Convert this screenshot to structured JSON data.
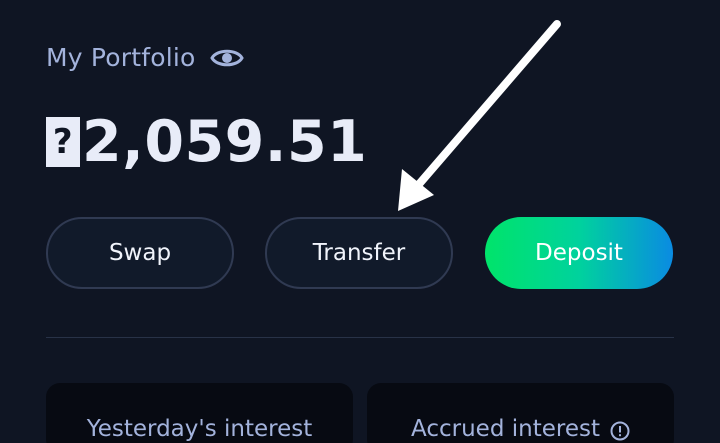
{
  "portfolio": {
    "title": "My Portfolio",
    "visibility_icon": "eye-icon",
    "currency_symbol": "?",
    "balance": "2,059.51"
  },
  "actions": {
    "swap_label": "Swap",
    "transfer_label": "Transfer",
    "deposit_label": "Deposit"
  },
  "stats": {
    "yesterday_label": "Yesterday's interest",
    "accrued_label": "Accrued interest",
    "accrued_info_icon": "info-icon"
  },
  "colors": {
    "background": "#0f1523",
    "muted_text": "#a3b3dc",
    "balance_text": "#e8ecf8",
    "deposit_gradient_start": "#00e46a",
    "deposit_gradient_end": "#0a8be2"
  },
  "annotation": {
    "icon": "pointer-arrow-icon"
  }
}
